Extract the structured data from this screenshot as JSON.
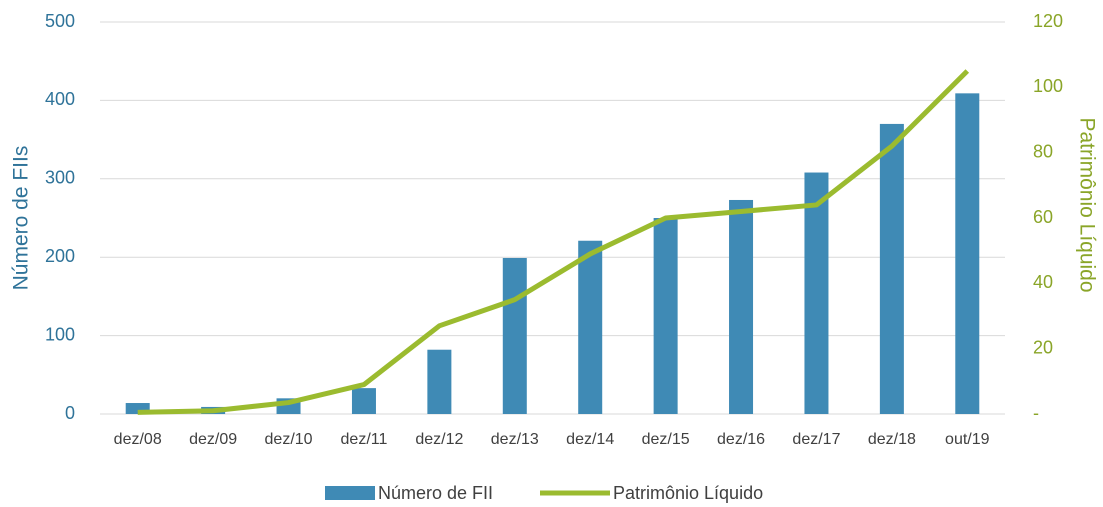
{
  "chart_data": {
    "type": "bar",
    "categories": [
      "dez/08",
      "dez/09",
      "dez/10",
      "dez/11",
      "dez/12",
      "dez/13",
      "dez/14",
      "dez/15",
      "dez/16",
      "dez/17",
      "dez/18",
      "out/19"
    ],
    "series": [
      {
        "name": "Número de FII",
        "type": "bar",
        "color": "#3f8ab5",
        "values": [
          14,
          9,
          20,
          33,
          82,
          199,
          221,
          250,
          273,
          308,
          370,
          409
        ]
      },
      {
        "name": "Patrimônio Líquido",
        "type": "line",
        "axis": "y2",
        "color": "#9bbb2f",
        "values": [
          0.5,
          1,
          3.5,
          9,
          27,
          35,
          49,
          60,
          62,
          64,
          82,
          105
        ]
      }
    ],
    "ylabel": "Número de FIIs",
    "y2label": "Patrimônio Líquido",
    "ylim": [
      0,
      500
    ],
    "yticks": [
      0,
      100,
      200,
      300,
      400,
      500
    ],
    "y2lim": [
      0,
      120
    ],
    "y2ticks": [
      {
        "value": 0,
        "label": "-"
      },
      20,
      40,
      60,
      80,
      100,
      120
    ],
    "grid": true,
    "legend": "bottom"
  }
}
